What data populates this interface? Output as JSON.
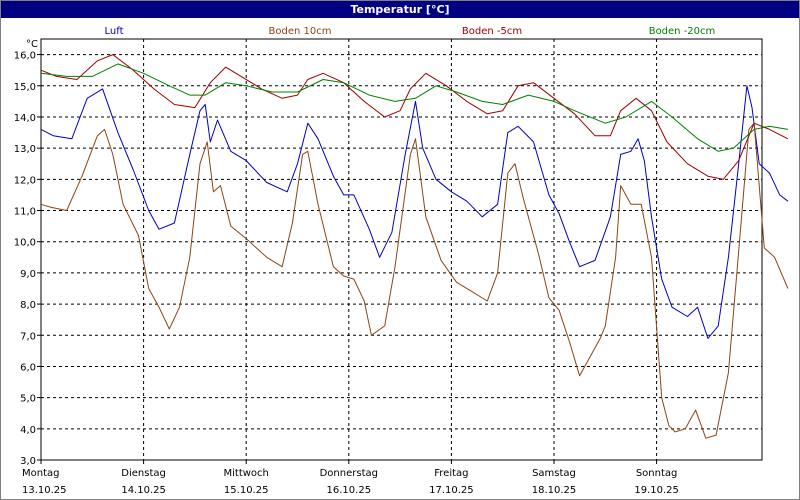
{
  "window": {
    "title": "Temperatur [°C]"
  },
  "chart_data": {
    "type": "line",
    "title": "Temperatur [°C]",
    "ylabel": "°C",
    "ylim": [
      3.0,
      16.5
    ],
    "xlim": [
      0,
      7
    ],
    "grid": true,
    "legend_position": "top",
    "yticks": [
      "3,0",
      "4,0",
      "5,0",
      "6,0",
      "7,0",
      "8,0",
      "9,0",
      "10,0",
      "11,0",
      "12,0",
      "13,0",
      "14,0",
      "15,0",
      "16,0"
    ],
    "days": [
      {
        "name": "Montag",
        "date": "13.10.25"
      },
      {
        "name": "Dienstag",
        "date": "14.10.25"
      },
      {
        "name": "Mittwoch",
        "date": "15.10.25"
      },
      {
        "name": "Donnerstag",
        "date": "16.10.25"
      },
      {
        "name": "Freitag",
        "date": "17.10.25"
      },
      {
        "name": "Samstag",
        "date": "18.10.25"
      },
      {
        "name": "Sonntag",
        "date": "19.10.25"
      }
    ],
    "series": [
      {
        "name": "Luft",
        "color": "#0000c0",
        "points": [
          [
            0,
            13.6
          ],
          [
            0.12,
            13.4
          ],
          [
            0.3,
            13.3
          ],
          [
            0.45,
            14.6
          ],
          [
            0.6,
            14.9
          ],
          [
            0.75,
            13.5
          ],
          [
            0.9,
            12.3
          ],
          [
            1.05,
            11.0
          ],
          [
            1.15,
            10.4
          ],
          [
            1.3,
            10.6
          ],
          [
            1.45,
            12.8
          ],
          [
            1.55,
            14.2
          ],
          [
            1.6,
            14.4
          ],
          [
            1.65,
            13.2
          ],
          [
            1.72,
            13.9
          ],
          [
            1.85,
            12.9
          ],
          [
            2.0,
            12.6
          ],
          [
            2.2,
            11.9
          ],
          [
            2.4,
            11.6
          ],
          [
            2.5,
            12.5
          ],
          [
            2.6,
            13.8
          ],
          [
            2.7,
            13.3
          ],
          [
            2.85,
            12.1
          ],
          [
            2.95,
            11.5
          ],
          [
            3.05,
            11.5
          ],
          [
            3.2,
            10.4
          ],
          [
            3.3,
            9.5
          ],
          [
            3.42,
            10.3
          ],
          [
            3.55,
            12.8
          ],
          [
            3.65,
            14.5
          ],
          [
            3.72,
            13.0
          ],
          [
            3.85,
            12.0
          ],
          [
            4.0,
            11.6
          ],
          [
            4.15,
            11.3
          ],
          [
            4.3,
            10.8
          ],
          [
            4.45,
            11.2
          ],
          [
            4.55,
            13.5
          ],
          [
            4.65,
            13.7
          ],
          [
            4.8,
            13.2
          ],
          [
            4.95,
            11.5
          ],
          [
            5.05,
            10.9
          ],
          [
            5.15,
            10.0
          ],
          [
            5.25,
            9.2
          ],
          [
            5.4,
            9.4
          ],
          [
            5.55,
            10.8
          ],
          [
            5.65,
            12.8
          ],
          [
            5.75,
            12.9
          ],
          [
            5.82,
            13.3
          ],
          [
            5.88,
            12.6
          ],
          [
            5.95,
            10.8
          ],
          [
            6.05,
            8.8
          ],
          [
            6.15,
            7.9
          ],
          [
            6.3,
            7.6
          ],
          [
            6.4,
            7.9
          ],
          [
            6.5,
            6.9
          ],
          [
            6.6,
            7.3
          ],
          [
            6.7,
            9.5
          ],
          [
            6.8,
            12.5
          ],
          [
            6.88,
            15.0
          ],
          [
            6.93,
            14.3
          ],
          [
            7.0,
            12.5
          ],
          [
            7.1,
            12.2
          ],
          [
            7.2,
            11.5
          ],
          [
            7.28,
            11.3
          ]
        ]
      },
      {
        "name": "Boden 10cm",
        "color": "#8b4513",
        "points": [
          [
            0,
            11.2
          ],
          [
            0.1,
            11.1
          ],
          [
            0.25,
            11.0
          ],
          [
            0.4,
            12.1
          ],
          [
            0.55,
            13.4
          ],
          [
            0.62,
            13.6
          ],
          [
            0.7,
            12.8
          ],
          [
            0.8,
            11.2
          ],
          [
            0.95,
            10.2
          ],
          [
            1.05,
            8.5
          ],
          [
            1.15,
            7.9
          ],
          [
            1.25,
            7.2
          ],
          [
            1.35,
            7.9
          ],
          [
            1.45,
            9.5
          ],
          [
            1.55,
            12.5
          ],
          [
            1.62,
            13.2
          ],
          [
            1.68,
            11.6
          ],
          [
            1.75,
            11.8
          ],
          [
            1.85,
            10.5
          ],
          [
            2.0,
            10.1
          ],
          [
            2.2,
            9.5
          ],
          [
            2.35,
            9.2
          ],
          [
            2.45,
            10.6
          ],
          [
            2.55,
            12.8
          ],
          [
            2.6,
            12.9
          ],
          [
            2.7,
            11.2
          ],
          [
            2.85,
            9.2
          ],
          [
            2.95,
            8.9
          ],
          [
            3.05,
            8.8
          ],
          [
            3.15,
            8.1
          ],
          [
            3.22,
            7.0
          ],
          [
            3.35,
            7.3
          ],
          [
            3.45,
            9.2
          ],
          [
            3.6,
            12.8
          ],
          [
            3.65,
            13.3
          ],
          [
            3.75,
            10.8
          ],
          [
            3.9,
            9.4
          ],
          [
            4.05,
            8.7
          ],
          [
            4.2,
            8.4
          ],
          [
            4.35,
            8.1
          ],
          [
            4.45,
            9.0
          ],
          [
            4.55,
            12.2
          ],
          [
            4.62,
            12.5
          ],
          [
            4.7,
            11.4
          ],
          [
            4.85,
            9.6
          ],
          [
            4.95,
            8.2
          ],
          [
            5.05,
            7.8
          ],
          [
            5.15,
            6.8
          ],
          [
            5.25,
            5.7
          ],
          [
            5.35,
            6.3
          ],
          [
            5.45,
            6.9
          ],
          [
            5.5,
            7.3
          ],
          [
            5.6,
            9.5
          ],
          [
            5.65,
            11.8
          ],
          [
            5.75,
            11.2
          ],
          [
            5.85,
            11.2
          ],
          [
            5.95,
            9.5
          ],
          [
            6.05,
            5.0
          ],
          [
            6.12,
            4.1
          ],
          [
            6.18,
            3.9
          ],
          [
            6.28,
            4.0
          ],
          [
            6.38,
            4.6
          ],
          [
            6.48,
            3.7
          ],
          [
            6.58,
            3.8
          ],
          [
            6.7,
            5.8
          ],
          [
            6.8,
            9.7
          ],
          [
            6.9,
            13.6
          ],
          [
            6.95,
            13.8
          ],
          [
            7.05,
            9.8
          ],
          [
            7.15,
            9.5
          ],
          [
            7.28,
            8.5
          ]
        ]
      },
      {
        "name": "Boden -5cm",
        "color": "#a00000",
        "points": [
          [
            0,
            15.5
          ],
          [
            0.15,
            15.3
          ],
          [
            0.35,
            15.2
          ],
          [
            0.55,
            15.8
          ],
          [
            0.7,
            16.0
          ],
          [
            0.9,
            15.5
          ],
          [
            1.1,
            14.9
          ],
          [
            1.3,
            14.4
          ],
          [
            1.5,
            14.3
          ],
          [
            1.65,
            15.1
          ],
          [
            1.8,
            15.6
          ],
          [
            1.95,
            15.3
          ],
          [
            2.15,
            14.9
          ],
          [
            2.35,
            14.6
          ],
          [
            2.5,
            14.7
          ],
          [
            2.6,
            15.2
          ],
          [
            2.75,
            15.4
          ],
          [
            2.95,
            15.1
          ],
          [
            3.15,
            14.5
          ],
          [
            3.35,
            14.0
          ],
          [
            3.5,
            14.2
          ],
          [
            3.6,
            14.9
          ],
          [
            3.75,
            15.4
          ],
          [
            3.95,
            15.0
          ],
          [
            4.15,
            14.5
          ],
          [
            4.35,
            14.1
          ],
          [
            4.5,
            14.2
          ],
          [
            4.65,
            15.0
          ],
          [
            4.8,
            15.1
          ],
          [
            5.0,
            14.6
          ],
          [
            5.2,
            14.1
          ],
          [
            5.4,
            13.4
          ],
          [
            5.55,
            13.4
          ],
          [
            5.65,
            14.2
          ],
          [
            5.8,
            14.6
          ],
          [
            5.95,
            14.2
          ],
          [
            6.1,
            13.2
          ],
          [
            6.3,
            12.5
          ],
          [
            6.5,
            12.1
          ],
          [
            6.65,
            12.0
          ],
          [
            6.8,
            12.6
          ],
          [
            6.95,
            13.8
          ],
          [
            7.1,
            13.6
          ],
          [
            7.28,
            13.3
          ]
        ]
      },
      {
        "name": "Boden -20cm",
        "color": "#008000",
        "points": [
          [
            0,
            15.4
          ],
          [
            0.25,
            15.3
          ],
          [
            0.5,
            15.3
          ],
          [
            0.75,
            15.7
          ],
          [
            1.0,
            15.4
          ],
          [
            1.25,
            15.0
          ],
          [
            1.45,
            14.7
          ],
          [
            1.6,
            14.7
          ],
          [
            1.8,
            15.1
          ],
          [
            2.0,
            15.0
          ],
          [
            2.25,
            14.8
          ],
          [
            2.5,
            14.8
          ],
          [
            2.75,
            15.2
          ],
          [
            2.95,
            15.1
          ],
          [
            3.2,
            14.7
          ],
          [
            3.45,
            14.5
          ],
          [
            3.65,
            14.6
          ],
          [
            3.85,
            15.0
          ],
          [
            4.05,
            14.8
          ],
          [
            4.3,
            14.5
          ],
          [
            4.5,
            14.4
          ],
          [
            4.75,
            14.7
          ],
          [
            5.0,
            14.5
          ],
          [
            5.2,
            14.2
          ],
          [
            5.5,
            13.8
          ],
          [
            5.7,
            14.0
          ],
          [
            5.95,
            14.5
          ],
          [
            6.15,
            14.0
          ],
          [
            6.4,
            13.3
          ],
          [
            6.6,
            12.9
          ],
          [
            6.75,
            13.0
          ],
          [
            6.95,
            13.6
          ],
          [
            7.1,
            13.7
          ],
          [
            7.28,
            13.6
          ]
        ]
      }
    ]
  }
}
